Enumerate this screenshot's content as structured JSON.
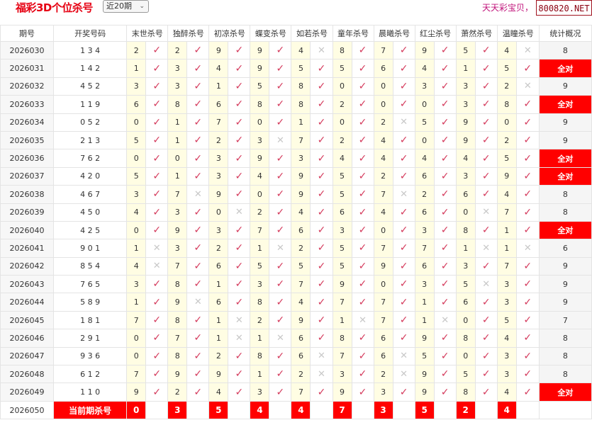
{
  "header": {
    "title": "福彩3D个位杀号",
    "period_select": {
      "value": "近20期"
    },
    "slogan": "天天彩宝贝，",
    "brand": "800820.NET"
  },
  "colors": {
    "accent_red": "#ff0000",
    "check": "#d43a5c",
    "cross": "#c8c8c8",
    "kill_cell_bg": "#fffde3"
  },
  "table": {
    "columns": [
      "期号",
      "开奖号码",
      "末世杀号",
      "独醉杀号",
      "初凉杀号",
      "蝶变杀号",
      "如若杀号",
      "童年杀号",
      "晨曦杀号",
      "红尘杀号",
      "萧然杀号",
      "温瞳杀号",
      "统计概况"
    ],
    "mark_icons": {
      "v": "check-icon",
      "x": "cross-icon"
    },
    "rows": [
      {
        "period": "2026030",
        "draw": "1 3 4",
        "kills": [
          2,
          2,
          9,
          9,
          4,
          8,
          7,
          9,
          5,
          4
        ],
        "marks": "vvvvxvvvvx",
        "stat": "8"
      },
      {
        "period": "2026031",
        "draw": "1 4 2",
        "kills": [
          1,
          3,
          4,
          9,
          5,
          5,
          6,
          4,
          1,
          5
        ],
        "marks": "vvvvvvvvvv",
        "stat": "全对"
      },
      {
        "period": "2026032",
        "draw": "4 5 2",
        "kills": [
          3,
          3,
          1,
          5,
          8,
          0,
          0,
          3,
          3,
          2
        ],
        "marks": "vvvvvvvvvx",
        "stat": "9"
      },
      {
        "period": "2026033",
        "draw": "1 1 9",
        "kills": [
          6,
          8,
          6,
          8,
          8,
          2,
          0,
          0,
          3,
          8
        ],
        "marks": "vvvvvvvvvv",
        "stat": "全对"
      },
      {
        "period": "2026034",
        "draw": "0 5 2",
        "kills": [
          0,
          1,
          7,
          0,
          1,
          0,
          2,
          5,
          9,
          0
        ],
        "marks": "vvvvvvxvvv",
        "stat": "9"
      },
      {
        "period": "2026035",
        "draw": "2 1 3",
        "kills": [
          5,
          1,
          2,
          3,
          7,
          2,
          4,
          0,
          9,
          2
        ],
        "marks": "vvvxvvvvvv",
        "stat": "9"
      },
      {
        "period": "2026036",
        "draw": "7 6 2",
        "kills": [
          0,
          0,
          3,
          9,
          3,
          4,
          4,
          4,
          4,
          5
        ],
        "marks": "vvvvvvvvvv",
        "stat": "全对"
      },
      {
        "period": "2026037",
        "draw": "4 2 0",
        "kills": [
          5,
          1,
          3,
          4,
          9,
          5,
          2,
          6,
          3,
          9
        ],
        "marks": "vvvvvvvvvv",
        "stat": "全对"
      },
      {
        "period": "2026038",
        "draw": "4 6 7",
        "kills": [
          3,
          7,
          9,
          0,
          9,
          5,
          7,
          2,
          6,
          4
        ],
        "marks": "vxvvvvxvvv",
        "stat": "8"
      },
      {
        "period": "2026039",
        "draw": "4 5 0",
        "kills": [
          4,
          3,
          0,
          2,
          4,
          6,
          4,
          6,
          0,
          7
        ],
        "marks": "vvxvvvvvxv",
        "stat": "8"
      },
      {
        "period": "2026040",
        "draw": "4 2 5",
        "kills": [
          0,
          9,
          3,
          7,
          6,
          3,
          0,
          3,
          8,
          1
        ],
        "marks": "vvvvvvvvvv",
        "stat": "全对"
      },
      {
        "period": "2026041",
        "draw": "9 0 1",
        "kills": [
          1,
          3,
          2,
          1,
          2,
          5,
          7,
          7,
          1,
          1
        ],
        "marks": "xvvxvvvvxx",
        "stat": "6"
      },
      {
        "period": "2026042",
        "draw": "8 5 4",
        "kills": [
          4,
          7,
          6,
          5,
          5,
          5,
          9,
          6,
          3,
          7
        ],
        "marks": "xvvvvvvvvv",
        "stat": "9"
      },
      {
        "period": "2026043",
        "draw": "7 6 5",
        "kills": [
          3,
          8,
          1,
          3,
          7,
          9,
          0,
          3,
          5,
          3
        ],
        "marks": "vvvvvvvvxv",
        "stat": "9"
      },
      {
        "period": "2026044",
        "draw": "5 8 9",
        "kills": [
          1,
          9,
          6,
          8,
          4,
          7,
          7,
          1,
          6,
          3
        ],
        "marks": "vxvvvvvvvv",
        "stat": "9"
      },
      {
        "period": "2026045",
        "draw": "1 8 1",
        "kills": [
          7,
          8,
          1,
          2,
          9,
          1,
          7,
          1,
          0,
          5
        ],
        "marks": "vvxvvxvxvv",
        "stat": "7"
      },
      {
        "period": "2026046",
        "draw": "2 9 1",
        "kills": [
          0,
          7,
          1,
          1,
          6,
          8,
          6,
          9,
          8,
          4
        ],
        "marks": "vvxxvvvvvv",
        "stat": "8"
      },
      {
        "period": "2026047",
        "draw": "9 3 6",
        "kills": [
          0,
          8,
          2,
          8,
          6,
          7,
          6,
          5,
          0,
          3
        ],
        "marks": "vvvvxvxvvv",
        "stat": "8"
      },
      {
        "period": "2026048",
        "draw": "6 1 2",
        "kills": [
          7,
          9,
          9,
          1,
          2,
          3,
          2,
          9,
          5,
          3
        ],
        "marks": "vvvvxvxvvv",
        "stat": "8"
      },
      {
        "period": "2026049",
        "draw": "1 1 0",
        "kills": [
          9,
          2,
          4,
          3,
          7,
          9,
          3,
          9,
          8,
          4
        ],
        "marks": "vvvvvvvvvv",
        "stat": "全对"
      }
    ],
    "current": {
      "period": "2026050",
      "label": "当前期杀号",
      "kills": [
        0,
        3,
        5,
        4,
        4,
        7,
        3,
        5,
        2,
        4
      ]
    }
  }
}
